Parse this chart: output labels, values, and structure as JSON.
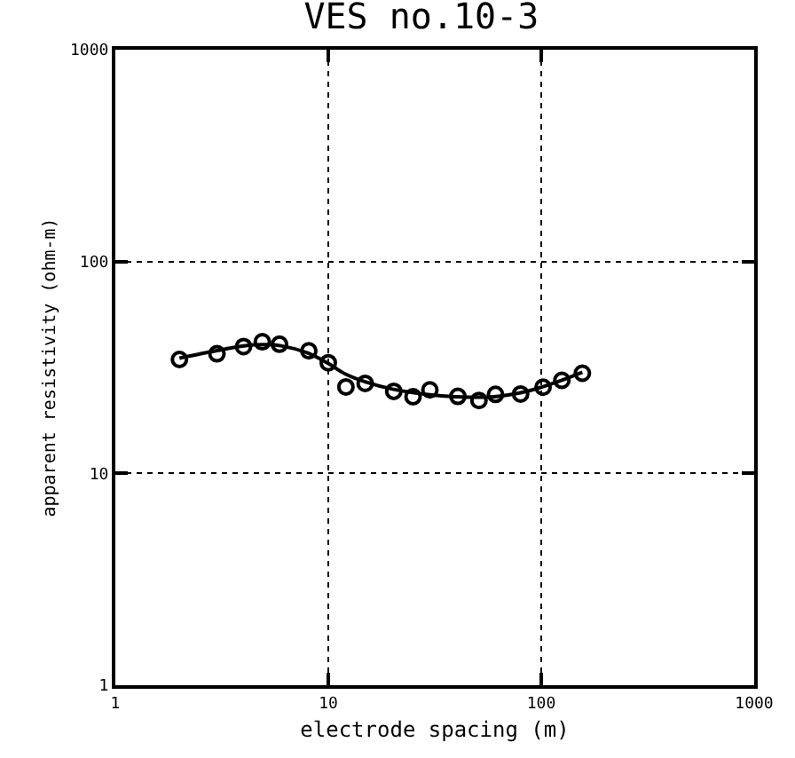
{
  "chart_data": {
    "type": "scatter",
    "title": "VES no.10-3",
    "xlabel": "electrode spacing (m)",
    "ylabel": "apparent resistivity (ohm-m)",
    "log": "xy",
    "xlim": [
      1,
      1000
    ],
    "ylim": [
      1,
      1000
    ],
    "xticks": [
      1,
      10,
      100,
      1000
    ],
    "yticks": [
      1,
      10,
      100,
      1000
    ],
    "grid": true,
    "series": [
      {
        "marker": "circle",
        "color": "#000000",
        "x": [
          2.0,
          3.0,
          4.0,
          4.9,
          5.9,
          8.1,
          10,
          12.1,
          14.9,
          20.3,
          25,
          30,
          40.6,
          51,
          61,
          80,
          102,
          125,
          156
        ],
        "values": [
          34.5,
          36.7,
          39.7,
          41.8,
          40.7,
          37.9,
          33.3,
          25.6,
          26.6,
          24.4,
          23,
          24.8,
          23.1,
          22.1,
          23.6,
          23.7,
          25.5,
          27.5,
          29.7
        ]
      },
      {
        "type": "line",
        "marker": "none",
        "color": "#000000",
        "x": [
          2,
          3,
          4,
          5,
          6,
          8,
          10,
          12,
          15,
          20,
          30,
          40,
          60,
          80,
          100,
          125,
          156
        ],
        "values": [
          35,
          38,
          40,
          40.5,
          40,
          37,
          33,
          29.5,
          27,
          25,
          23.5,
          23,
          23,
          24,
          25.5,
          27.5,
          30
        ]
      }
    ]
  }
}
